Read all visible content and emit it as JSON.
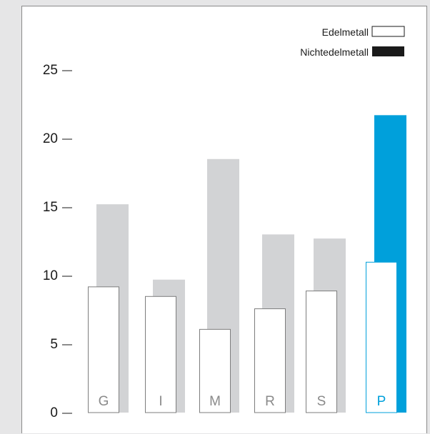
{
  "chart_data": {
    "type": "bar",
    "categories": [
      "G",
      "I",
      "M",
      "R",
      "S",
      "P"
    ],
    "series": [
      {
        "name": "Edelmetall",
        "values": [
          9.2,
          8.5,
          6.1,
          7.6,
          8.9,
          11.0
        ]
      },
      {
        "name": "Nichtedelmetall",
        "values": [
          15.2,
          9.7,
          18.5,
          13.0,
          12.7,
          21.7
        ]
      }
    ],
    "highlight_category": "P",
    "yticks": [
      "0",
      "5",
      "10",
      "15",
      "20",
      "25"
    ],
    "ylim": [
      0,
      25
    ],
    "legend_position": "top-right",
    "colors": {
      "edel_fill": "#ffffff",
      "edel_stroke": "#7d7d7d",
      "nicht_fill": "#d2d3d5",
      "legend_nicht": "#1a1a1a",
      "highlight": "#00a0db",
      "category_text": "#8a8a8a"
    }
  }
}
